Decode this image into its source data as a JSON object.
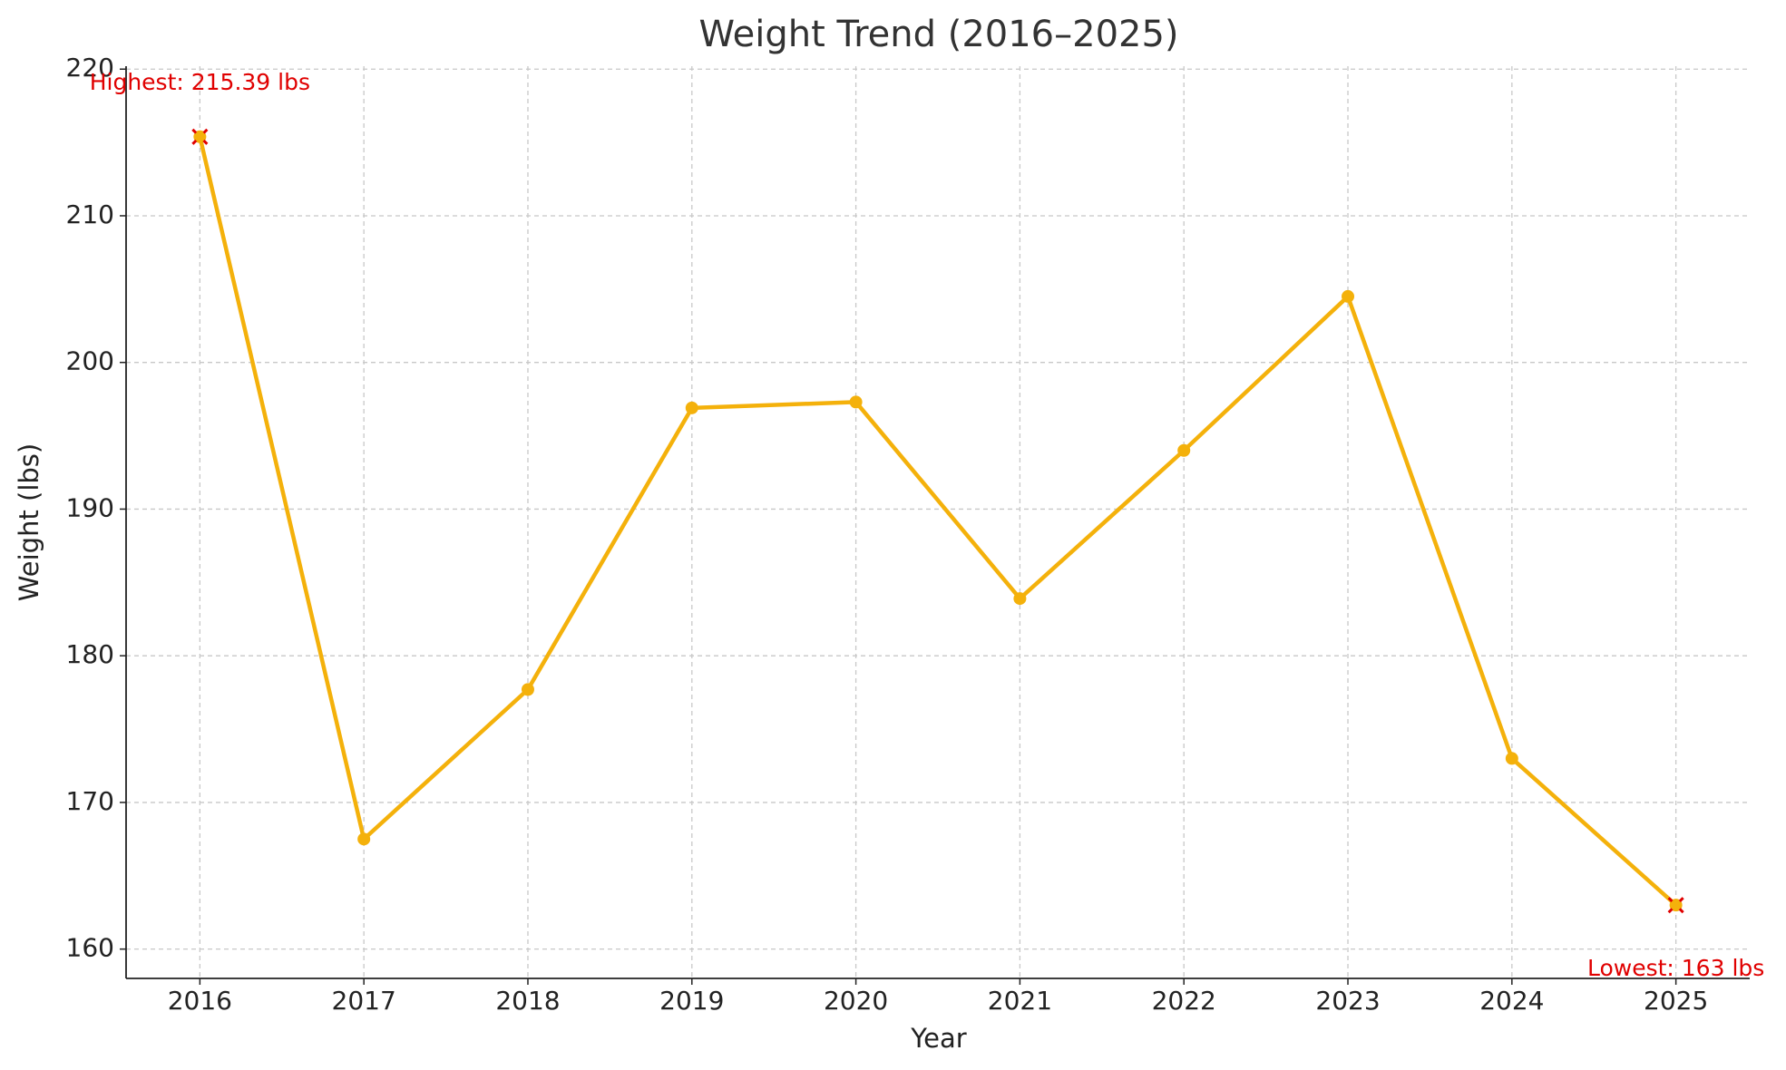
{
  "chart_data": {
    "type": "line",
    "title": "Weight Trend (2016–2025)",
    "x_label": "Year",
    "y_label": "Weight (lbs)",
    "x": [
      2016,
      2017,
      2018,
      2019,
      2020,
      2021,
      2022,
      2023,
      2024,
      2025
    ],
    "values": [
      215.39,
      167.5,
      177.7,
      196.9,
      197.3,
      183.9,
      194.0,
      204.5,
      173.0,
      163
    ],
    "color": "#f4b10b",
    "xlim": [
      2015.55,
      2025.45
    ],
    "xticks": [
      2016,
      2017,
      2018,
      2019,
      2020,
      2021,
      2022,
      2023,
      2024,
      2025
    ],
    "ylim": [
      158,
      220.2
    ],
    "yticks": [
      160,
      170,
      180,
      190,
      200,
      210,
      220
    ],
    "grid": true,
    "annotations": [
      {
        "text": "Highest: 215.39 lbs",
        "x": 2016,
        "y": 215.39,
        "color": "#e00000",
        "position": "above"
      },
      {
        "text": "Lowest: 163 lbs",
        "x": 2025,
        "y": 163,
        "color": "#e00000",
        "position": "below"
      }
    ]
  }
}
